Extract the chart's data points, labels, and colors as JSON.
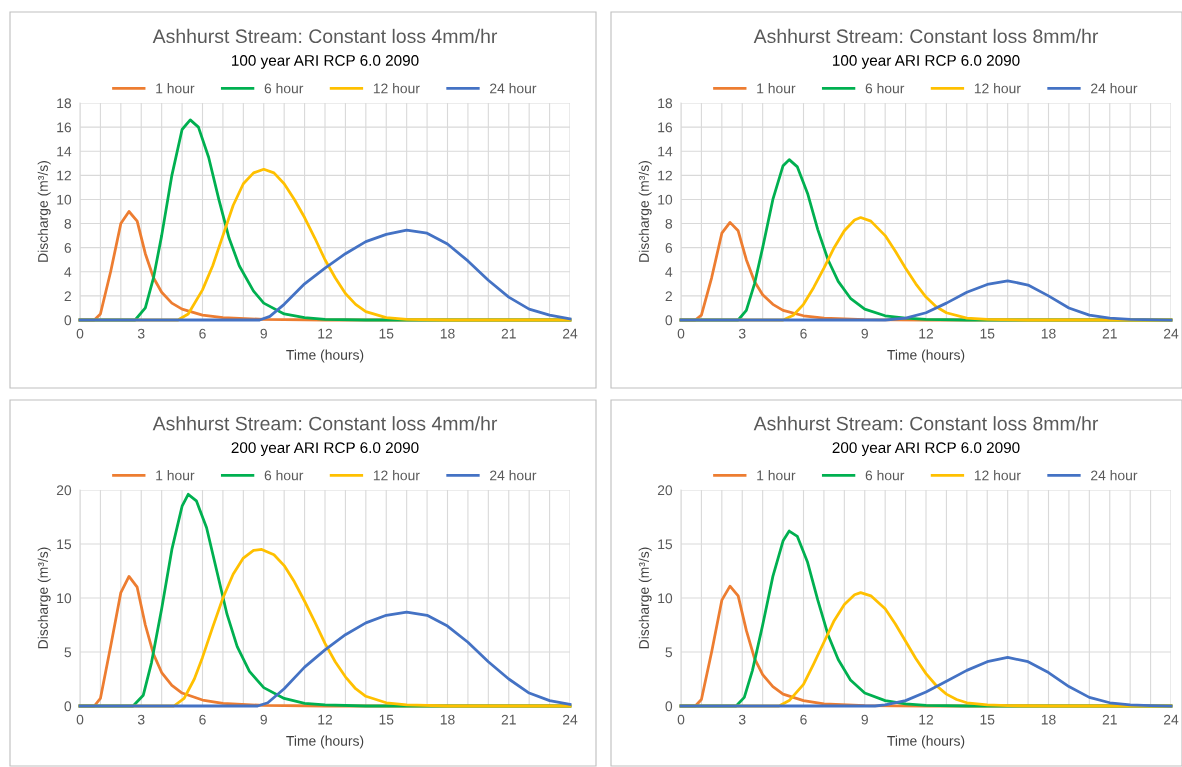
{
  "chart_data": [
    {
      "type": "line",
      "title": "Ashhurst Stream: Constant loss 4mm/hr",
      "subtitle": "100 year ARI RCP 6.0 2090",
      "xlabel": "Time (hours)",
      "ylabel": "Discharge (m³/s)",
      "xlim": [
        0,
        24
      ],
      "xticks": [
        0,
        {
          "value": 1,
          "label": null
        },
        {
          "value": 2,
          "label": null
        },
        3,
        {
          "value": 4,
          "label": null
        },
        {
          "value": 5,
          "label": null
        },
        6,
        {
          "value": 7,
          "label": null
        },
        {
          "value": 8,
          "label": null
        },
        9,
        {
          "value": 10,
          "label": null
        },
        {
          "value": 11,
          "label": null
        },
        12,
        {
          "value": 13,
          "label": null
        },
        {
          "value": 14,
          "label": null
        },
        15,
        {
          "value": 16,
          "label": null
        },
        {
          "value": 17,
          "label": null
        },
        18,
        {
          "value": 19,
          "label": null
        },
        {
          "value": 20,
          "label": null
        },
        21,
        {
          "value": 22,
          "label": null
        },
        {
          "value": 23,
          "label": null
        },
        24
      ],
      "ylim": [
        0,
        18
      ],
      "yticks": [
        0,
        2,
        4,
        6,
        8,
        10,
        12,
        14,
        16,
        18
      ],
      "grid": true,
      "legend": "top",
      "marker": "none",
      "line_style": "solid",
      "series": [
        {
          "name": "1 hour",
          "color": "#ed7d31",
          "x": [
            0,
            0.7,
            1.0,
            1.5,
            2.0,
            2.4,
            2.8,
            3.2,
            3.6,
            4.0,
            4.5,
            5,
            6,
            7,
            9,
            12,
            24
          ],
          "values": [
            0,
            0,
            0.5,
            4,
            8,
            9.0,
            8.2,
            5.5,
            3.5,
            2.3,
            1.4,
            0.9,
            0.4,
            0.2,
            0.05,
            0,
            0
          ]
        },
        {
          "name": "6 hour",
          "color": "#00b050",
          "x": [
            0,
            2.7,
            3.2,
            3.6,
            4,
            4.5,
            5,
            5.4,
            5.8,
            6.3,
            6.8,
            7.3,
            7.8,
            8.5,
            9,
            10,
            11,
            12,
            14,
            24
          ],
          "values": [
            0,
            0,
            1,
            3.5,
            7,
            12,
            15.8,
            16.6,
            16,
            13.5,
            10,
            6.8,
            4.5,
            2.4,
            1.4,
            0.5,
            0.2,
            0.05,
            0,
            0
          ]
        },
        {
          "name": "12 hour",
          "color": "#ffc000",
          "x": [
            0,
            4.8,
            5.3,
            6,
            6.5,
            7,
            7.5,
            8,
            8.5,
            9,
            9.5,
            10,
            10.5,
            11,
            11.5,
            12,
            12.5,
            13,
            13.5,
            14,
            15,
            16,
            18,
            24
          ],
          "values": [
            0,
            0,
            0.5,
            2.5,
            4.5,
            7,
            9.5,
            11.3,
            12.2,
            12.5,
            12.2,
            11.3,
            10,
            8.5,
            6.8,
            5,
            3.5,
            2.2,
            1.3,
            0.7,
            0.2,
            0.05,
            0,
            0
          ]
        },
        {
          "name": "24 hour",
          "color": "#4472c4",
          "x": [
            0,
            8.8,
            9.3,
            10,
            11,
            12,
            13,
            14,
            15,
            16,
            17,
            18,
            19,
            20,
            21,
            22,
            23,
            24
          ],
          "values": [
            0,
            0,
            0.3,
            1.3,
            3,
            4.3,
            5.5,
            6.5,
            7.1,
            7.45,
            7.2,
            6.3,
            4.9,
            3.3,
            1.9,
            0.9,
            0.4,
            0.1
          ]
        }
      ]
    },
    {
      "type": "line",
      "title": "Ashhurst Stream: Constant loss 8mm/hr",
      "subtitle": "100 year ARI RCP 6.0 2090",
      "xlabel": "Time (hours)",
      "ylabel": "Discharge (m³/s)",
      "xlim": [
        0,
        24
      ],
      "xticks": [
        0,
        {
          "value": 1,
          "label": null
        },
        {
          "value": 2,
          "label": null
        },
        3,
        {
          "value": 4,
          "label": null
        },
        {
          "value": 5,
          "label": null
        },
        6,
        {
          "value": 7,
          "label": null
        },
        {
          "value": 8,
          "label": null
        },
        9,
        {
          "value": 10,
          "label": null
        },
        {
          "value": 11,
          "label": null
        },
        12,
        {
          "value": 13,
          "label": null
        },
        {
          "value": 14,
          "label": null
        },
        15,
        {
          "value": 16,
          "label": null
        },
        {
          "value": 17,
          "label": null
        },
        18,
        {
          "value": 19,
          "label": null
        },
        {
          "value": 20,
          "label": null
        },
        21,
        {
          "value": 22,
          "label": null
        },
        {
          "value": 23,
          "label": null
        },
        24
      ],
      "ylim": [
        0,
        18
      ],
      "yticks": [
        0,
        2,
        4,
        6,
        8,
        10,
        12,
        14,
        16,
        18
      ],
      "grid": true,
      "legend": "top",
      "marker": "none",
      "line_style": "solid",
      "series": [
        {
          "name": "1 hour",
          "color": "#ed7d31",
          "x": [
            0,
            0.7,
            1.0,
            1.5,
            2.0,
            2.4,
            2.8,
            3.2,
            3.6,
            4.0,
            4.5,
            5,
            6,
            7,
            9,
            12,
            24
          ],
          "values": [
            0,
            0,
            0.4,
            3.5,
            7.2,
            8.1,
            7.4,
            5.0,
            3.2,
            2.1,
            1.3,
            0.8,
            0.35,
            0.15,
            0.03,
            0,
            0
          ]
        },
        {
          "name": "6 hour",
          "color": "#00b050",
          "x": [
            0,
            2.8,
            3.2,
            3.6,
            4,
            4.5,
            5,
            5.3,
            5.7,
            6.2,
            6.7,
            7.2,
            7.7,
            8.3,
            9,
            10,
            11,
            12,
            14,
            24
          ],
          "values": [
            0,
            0,
            0.8,
            3,
            6,
            10,
            12.8,
            13.3,
            12.7,
            10.5,
            7.5,
            5,
            3.2,
            1.8,
            0.9,
            0.35,
            0.15,
            0.05,
            0,
            0
          ]
        },
        {
          "name": "12 hour",
          "color": "#ffc000",
          "x": [
            0,
            5,
            5.5,
            6,
            6.5,
            7,
            7.5,
            8,
            8.5,
            8.8,
            9.3,
            10,
            10.5,
            11,
            11.5,
            12,
            12.5,
            13,
            14,
            15,
            17,
            24
          ],
          "values": [
            0,
            0,
            0.4,
            1.3,
            2.7,
            4.3,
            6,
            7.4,
            8.3,
            8.5,
            8.2,
            7,
            5.7,
            4.3,
            3.0,
            1.9,
            1.1,
            0.6,
            0.15,
            0.05,
            0,
            0
          ]
        },
        {
          "name": "24 hour",
          "color": "#4472c4",
          "x": [
            0,
            10,
            11,
            12,
            13,
            14,
            15,
            16,
            17,
            18,
            19,
            20,
            21,
            22,
            24
          ],
          "values": [
            0,
            0,
            0.15,
            0.6,
            1.4,
            2.3,
            2.95,
            3.25,
            2.9,
            2.0,
            1.0,
            0.4,
            0.15,
            0.05,
            0
          ]
        }
      ]
    },
    {
      "type": "line",
      "title": "Ashhurst Stream: Constant loss 4mm/hr",
      "subtitle": "200 year ARI RCP 6.0 2090",
      "xlabel": "Time (hours)",
      "ylabel": "Discharge (m³/s)",
      "xlim": [
        0,
        24
      ],
      "xticks": [
        0,
        {
          "value": 1,
          "label": null
        },
        {
          "value": 2,
          "label": null
        },
        3,
        {
          "value": 4,
          "label": null
        },
        {
          "value": 5,
          "label": null
        },
        6,
        {
          "value": 7,
          "label": null
        },
        {
          "value": 8,
          "label": null
        },
        9,
        {
          "value": 10,
          "label": null
        },
        {
          "value": 11,
          "label": null
        },
        12,
        {
          "value": 13,
          "label": null
        },
        {
          "value": 14,
          "label": null
        },
        15,
        {
          "value": 16,
          "label": null
        },
        {
          "value": 17,
          "label": null
        },
        18,
        {
          "value": 19,
          "label": null
        },
        {
          "value": 20,
          "label": null
        },
        21,
        {
          "value": 22,
          "label": null
        },
        {
          "value": 23,
          "label": null
        },
        24
      ],
      "ylim": [
        0,
        20
      ],
      "yticks": [
        0,
        5,
        10,
        15,
        20
      ],
      "grid": true,
      "legend": "top",
      "marker": "none",
      "line_style": "solid",
      "series": [
        {
          "name": "1 hour",
          "color": "#ed7d31",
          "x": [
            0,
            0.7,
            1.0,
            1.5,
            2.0,
            2.4,
            2.8,
            3.2,
            3.6,
            4.0,
            4.5,
            5,
            6,
            7,
            9,
            12,
            24
          ],
          "values": [
            0,
            0,
            0.7,
            5.5,
            10.5,
            12,
            11,
            7.5,
            4.8,
            3.1,
            1.9,
            1.2,
            0.55,
            0.25,
            0.05,
            0,
            0
          ]
        },
        {
          "name": "6 hour",
          "color": "#00b050",
          "x": [
            0,
            2.6,
            3.1,
            3.5,
            4,
            4.5,
            5,
            5.3,
            5.7,
            6.2,
            6.7,
            7.2,
            7.7,
            8.3,
            9,
            10,
            11,
            12,
            14,
            24
          ],
          "values": [
            0,
            0,
            1,
            4,
            9,
            14.5,
            18.5,
            19.6,
            19,
            16.5,
            12.5,
            8.5,
            5.5,
            3.2,
            1.7,
            0.7,
            0.25,
            0.1,
            0,
            0
          ]
        },
        {
          "name": "12 hour",
          "color": "#ffc000",
          "x": [
            0,
            4.6,
            5.1,
            5.6,
            6,
            6.5,
            7,
            7.5,
            8,
            8.5,
            8.9,
            9.5,
            10,
            10.5,
            11,
            11.5,
            12,
            12.5,
            13,
            13.5,
            14,
            15,
            16,
            18,
            24
          ],
          "values": [
            0,
            0,
            0.7,
            2.5,
            4.5,
            7.3,
            10,
            12.2,
            13.7,
            14.4,
            14.5,
            14,
            13,
            11.5,
            9.7,
            7.8,
            5.8,
            4.1,
            2.7,
            1.6,
            0.9,
            0.3,
            0.1,
            0,
            0
          ]
        },
        {
          "name": "24 hour",
          "color": "#4472c4",
          "x": [
            0,
            8.7,
            9.2,
            10,
            11,
            12,
            13,
            14,
            15,
            16,
            17,
            18,
            19,
            20,
            21,
            22,
            23,
            24
          ],
          "values": [
            0,
            0,
            0.3,
            1.6,
            3.6,
            5.2,
            6.6,
            7.7,
            8.4,
            8.7,
            8.4,
            7.4,
            5.9,
            4.1,
            2.5,
            1.2,
            0.5,
            0.15
          ]
        }
      ]
    },
    {
      "type": "line",
      "title": "Ashhurst Stream: Constant loss 8mm/hr",
      "subtitle": "200 year ARI RCP 6.0 2090",
      "xlabel": "Time (hours)",
      "ylabel": "Discharge (m³/s)",
      "xlim": [
        0,
        24
      ],
      "xticks": [
        0,
        {
          "value": 1,
          "label": null
        },
        {
          "value": 2,
          "label": null
        },
        3,
        {
          "value": 4,
          "label": null
        },
        {
          "value": 5,
          "label": null
        },
        6,
        {
          "value": 7,
          "label": null
        },
        {
          "value": 8,
          "label": null
        },
        9,
        {
          "value": 10,
          "label": null
        },
        {
          "value": 11,
          "label": null
        },
        12,
        {
          "value": 13,
          "label": null
        },
        {
          "value": 14,
          "label": null
        },
        15,
        {
          "value": 16,
          "label": null
        },
        {
          "value": 17,
          "label": null
        },
        18,
        {
          "value": 19,
          "label": null
        },
        {
          "value": 20,
          "label": null
        },
        21,
        {
          "value": 22,
          "label": null
        },
        {
          "value": 23,
          "label": null
        },
        24
      ],
      "ylim": [
        0,
        20
      ],
      "yticks": [
        0,
        5,
        10,
        15,
        20
      ],
      "grid": true,
      "legend": "top",
      "marker": "none",
      "line_style": "solid",
      "series": [
        {
          "name": "1 hour",
          "color": "#ed7d31",
          "x": [
            0,
            0.7,
            1.0,
            1.5,
            2.0,
            2.4,
            2.8,
            3.2,
            3.6,
            4.0,
            4.5,
            5,
            6,
            7,
            9,
            12,
            24
          ],
          "values": [
            0,
            0,
            0.6,
            5,
            9.8,
            11.1,
            10.2,
            7,
            4.4,
            2.9,
            1.8,
            1.1,
            0.5,
            0.2,
            0.04,
            0,
            0
          ]
        },
        {
          "name": "6 hour",
          "color": "#00b050",
          "x": [
            0,
            2.7,
            3.1,
            3.5,
            4,
            4.5,
            5,
            5.3,
            5.7,
            6.2,
            6.7,
            7.2,
            7.7,
            8.3,
            9,
            10,
            11,
            12,
            14,
            24
          ],
          "values": [
            0,
            0,
            0.8,
            3.3,
            7.5,
            12,
            15.3,
            16.2,
            15.7,
            13.3,
            9.8,
            6.6,
            4.3,
            2.4,
            1.2,
            0.5,
            0.2,
            0.05,
            0,
            0
          ]
        },
        {
          "name": "12 hour",
          "color": "#ffc000",
          "x": [
            0,
            4.8,
            5.3,
            6,
            6.5,
            7,
            7.5,
            8,
            8.5,
            8.8,
            9.3,
            10,
            10.5,
            11,
            11.5,
            12,
            12.5,
            13,
            13.5,
            14,
            15,
            16,
            18,
            24
          ],
          "values": [
            0,
            0,
            0.5,
            2,
            3.9,
            5.9,
            7.9,
            9.4,
            10.3,
            10.5,
            10.2,
            9,
            7.6,
            6,
            4.4,
            3,
            1.9,
            1.1,
            0.6,
            0.3,
            0.1,
            0.03,
            0,
            0
          ]
        },
        {
          "name": "24 hour",
          "color": "#4472c4",
          "x": [
            0,
            9.5,
            10,
            11,
            12,
            13,
            14,
            15,
            16,
            17,
            18,
            19,
            20,
            21,
            22,
            23,
            24
          ],
          "values": [
            0,
            0,
            0.1,
            0.5,
            1.3,
            2.3,
            3.3,
            4.1,
            4.5,
            4.1,
            3.1,
            1.8,
            0.8,
            0.3,
            0.1,
            0.03,
            0
          ]
        }
      ]
    }
  ]
}
